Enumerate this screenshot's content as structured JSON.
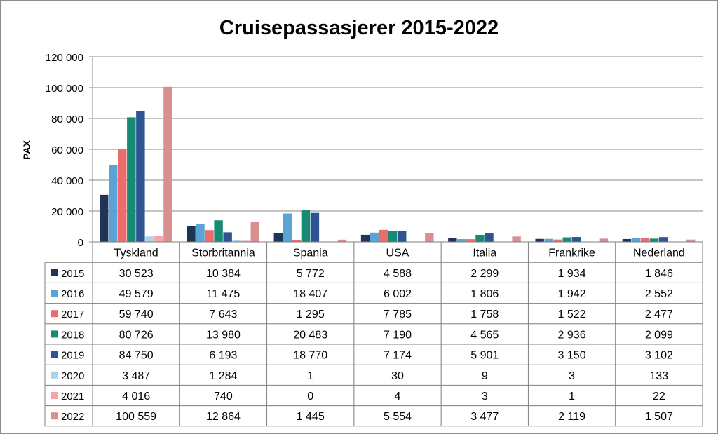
{
  "chart_data": {
    "type": "bar",
    "title": "Cruisepassasjerer 2015-2022",
    "ylabel": "PAX",
    "xlabel": "",
    "ylim": [
      0,
      120000
    ],
    "yticks": [
      "0",
      "20 000",
      "40 000",
      "60 000",
      "80 000",
      "100 000",
      "120 000"
    ],
    "grid": true,
    "legend": "data-table-left",
    "categories": [
      "Tyskland",
      "Storbritannia",
      "Spania",
      "USA",
      "Italia",
      "Frankrike",
      "Nederland"
    ],
    "series": [
      {
        "name": "2015",
        "color": "#1f3557",
        "values": [
          30523,
          10384,
          5772,
          4588,
          2299,
          1934,
          1846
        ],
        "labels": [
          "30 523",
          "10 384",
          "5 772",
          "4 588",
          "2 299",
          "1 934",
          "1 846"
        ]
      },
      {
        "name": "2016",
        "color": "#5ba3d4",
        "values": [
          49579,
          11475,
          18407,
          6002,
          1806,
          1942,
          2552
        ],
        "labels": [
          "49 579",
          "11 475",
          "18 407",
          "6 002",
          "1 806",
          "1 942",
          "2 552"
        ]
      },
      {
        "name": "2017",
        "color": "#ec6b6b",
        "values": [
          59740,
          7643,
          1295,
          7785,
          1758,
          1522,
          2477
        ],
        "labels": [
          "59 740",
          "7 643",
          "1 295",
          "7 785",
          "1 758",
          "1 522",
          "2 477"
        ]
      },
      {
        "name": "2018",
        "color": "#168a72",
        "values": [
          80726,
          13980,
          20483,
          7190,
          4565,
          2936,
          2099
        ],
        "labels": [
          "80 726",
          "13 980",
          "20 483",
          "7 190",
          "4 565",
          "2 936",
          "2 099"
        ]
      },
      {
        "name": "2019",
        "color": "#2f5493",
        "values": [
          84750,
          6193,
          18770,
          7174,
          5901,
          3150,
          3102
        ],
        "labels": [
          "84 750",
          "6 193",
          "18 770",
          "7 174",
          "5 901",
          "3 150",
          "3 102"
        ]
      },
      {
        "name": "2020",
        "color": "#a8d4ec",
        "values": [
          3487,
          1284,
          1,
          30,
          9,
          3,
          133
        ],
        "labels": [
          "3 487",
          "1 284",
          "1",
          "30",
          "9",
          "3",
          "133"
        ]
      },
      {
        "name": "2021",
        "color": "#f4a6a6",
        "values": [
          4016,
          740,
          0,
          4,
          3,
          1,
          22
        ],
        "labels": [
          "4 016",
          "740",
          "0",
          "4",
          "3",
          "1",
          "22"
        ]
      },
      {
        "name": "2022",
        "color": "#d88f8f",
        "values": [
          100559,
          12864,
          1445,
          5554,
          3477,
          2119,
          1507
        ],
        "labels": [
          "100 559",
          "12 864",
          "1 445",
          "5 554",
          "3 477",
          "2 119",
          "1 507"
        ]
      }
    ]
  }
}
